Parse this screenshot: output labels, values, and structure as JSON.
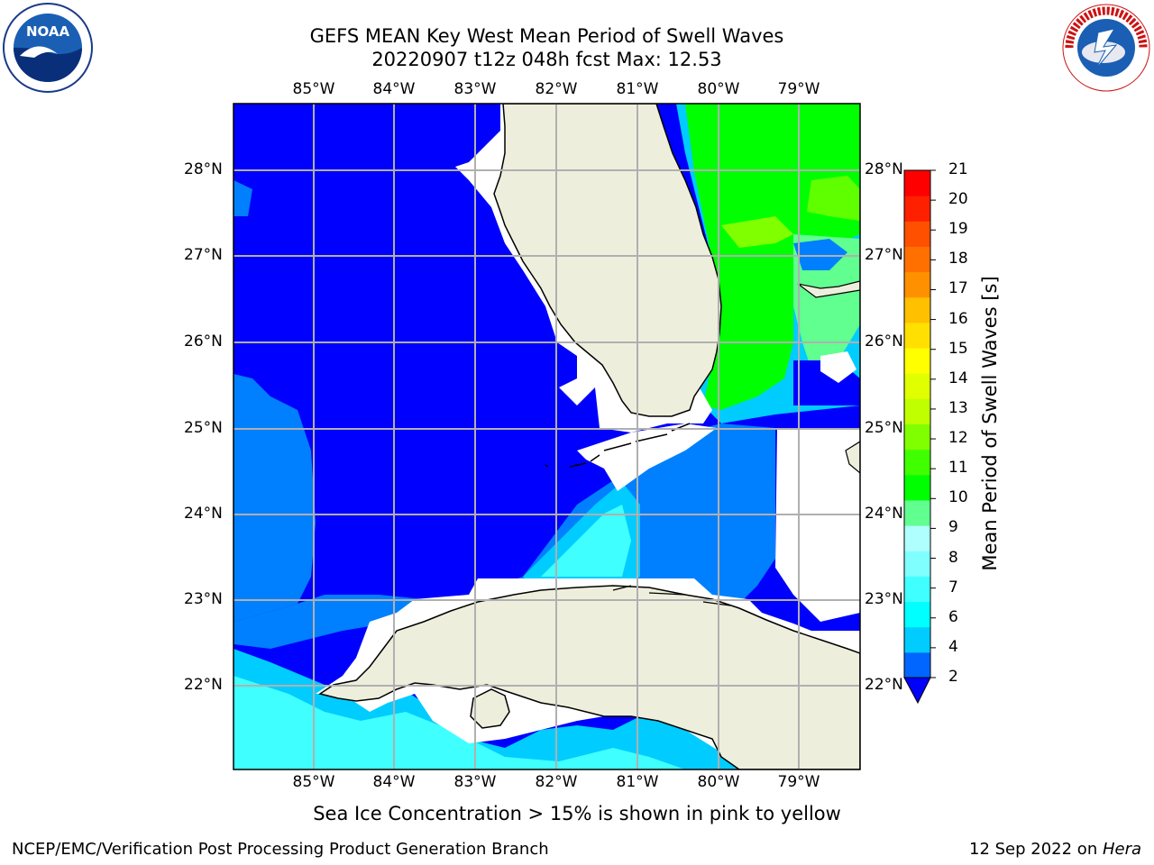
{
  "header": {
    "title_line1": "GEFS MEAN Key West Mean Period of Swell Waves",
    "title_line2": "20220907 t12z 048h fcst   Max: 12.53"
  },
  "logos": {
    "left": {
      "name": "noaa-logo",
      "text": "NOAA"
    },
    "right": {
      "name": "nws-logo",
      "text": "NATIONAL WEATHER SERVICE"
    }
  },
  "map": {
    "lon_labels": [
      "85°W",
      "84°W",
      "83°W",
      "82°W",
      "81°W",
      "80°W",
      "79°W"
    ],
    "lat_labels": [
      "28°N",
      "27°N",
      "26°N",
      "25°N",
      "24°N",
      "23°N",
      "22°N"
    ],
    "colors": {
      "land": "#eeeedd",
      "blue": "#0000ff",
      "mid_blue": "#0080ff",
      "light_blue": "#00ccff",
      "cyan": "#40ffff",
      "pale_cyan": "#a0ffff",
      "green_light": "#60ff90",
      "green": "#00ff00",
      "green_yellow": "#80ff00",
      "grid": "#b0b0b0"
    }
  },
  "colorbar": {
    "label": "Mean Period of Swell Waves [s]",
    "ticks": [
      "21",
      "20",
      "19",
      "18",
      "17",
      "16",
      "15",
      "14",
      "13",
      "12",
      "11",
      "10",
      "9",
      "8",
      "7",
      "6",
      "4",
      "2"
    ],
    "colors_bottom_to_top": [
      "#0066ff",
      "#00ccff",
      "#00ffff",
      "#40ffff",
      "#80ffff",
      "#b0ffff",
      "#60ff90",
      "#00ff00",
      "#40ff00",
      "#80ff00",
      "#c0ff00",
      "#e0ff00",
      "#ffff00",
      "#ffe000",
      "#ffc000",
      "#ff9000",
      "#ff7000",
      "#ff5000",
      "#ff2000",
      "#ff0000"
    ]
  },
  "subtitle": "Sea Ice Concentration > 15% is shown in pink to yellow",
  "footer": {
    "left": "NCEP/EMC/Verification Post Processing Product Generation Branch",
    "date": "12 Sep 2022 on ",
    "machine": "Hera"
  }
}
